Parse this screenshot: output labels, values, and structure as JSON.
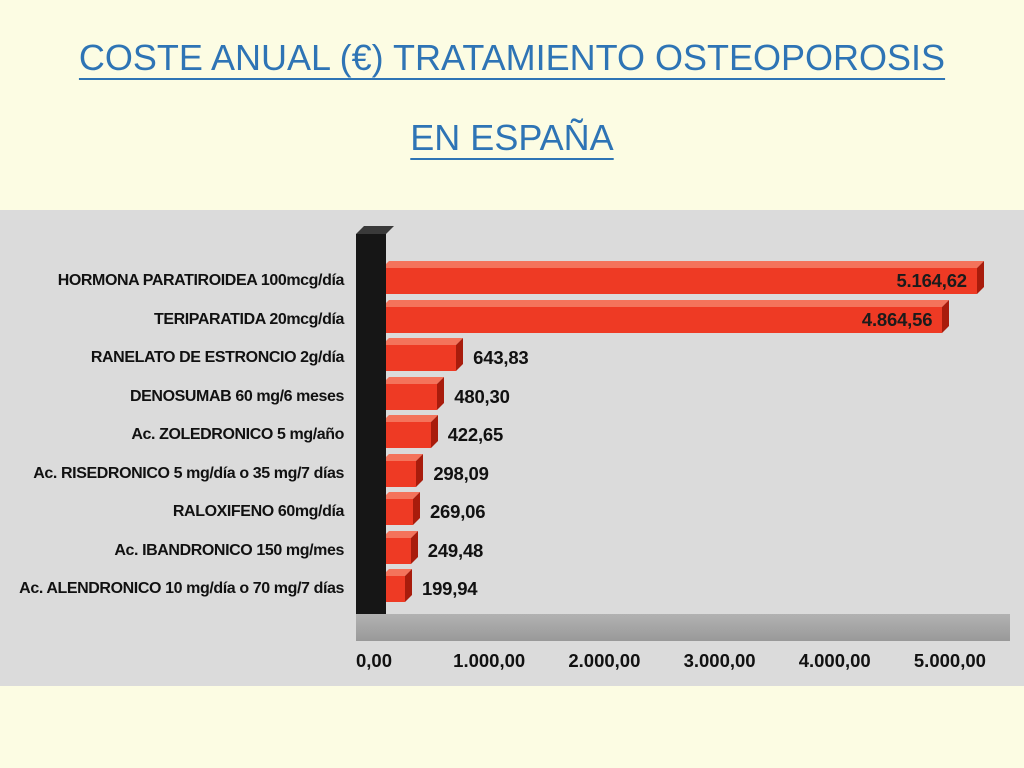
{
  "slide": {
    "title_line1": "COSTE ANUAL (€) TRATAMIENTO OSTEOPOROSIS",
    "title_line2": "EN ESPAÑA"
  },
  "colors": {
    "slide_bg": "#FCFCE3",
    "title_blue": "#2E74B5",
    "panel_bg": "#DBDBDB",
    "bar_red": "#EE3A24",
    "bar_top": "#F4735B",
    "bar_side": "#A81C0C",
    "axis_black": "#161616",
    "axis_cap": "#3A3A3A",
    "floor_gray": "#B2B2B2",
    "text_black": "#111111"
  },
  "chart_data": {
    "type": "bar",
    "orientation": "horizontal",
    "title": "COSTE ANUAL (€) TRATAMIENTO OSTEOPOROSIS EN ESPAÑA",
    "xlabel": "",
    "ylabel": "",
    "categories": [
      "HORMONA PARATIROIDEA 100mcg/día",
      "TERIPARATIDA 20mcg/día",
      "RANELATO DE ESTRONCIO 2g/día",
      "DENOSUMAB 60 mg/6 meses",
      "Ac. ZOLEDRONICO 5 mg/año",
      "Ac. RISEDRONICO 5 mg/día o 35 mg/7 días",
      "RALOXIFENO 60mg/día",
      "Ac. IBANDRONICO 150 mg/mes",
      "Ac. ALENDRONICO 10 mg/día o 70 mg/7 días"
    ],
    "values": [
      5164.62,
      4864.56,
      643.83,
      480.3,
      422.65,
      298.09,
      269.06,
      249.48,
      199.94
    ],
    "value_labels": [
      "5.164,62",
      "4.864,56",
      "643,83",
      "480,30",
      "422,65",
      "298,09",
      "269,06",
      "249,48",
      "199,94"
    ],
    "x_ticks": [
      "0,00",
      "1.000,00",
      "2.000,00",
      "3.000,00",
      "4.000,00",
      "5.000,00"
    ],
    "x_tick_values": [
      0,
      1000,
      2000,
      3000,
      4000,
      5000
    ],
    "xlim": [
      0,
      5400
    ],
    "grid": false,
    "legend": false,
    "inside_label_min": 3000
  }
}
